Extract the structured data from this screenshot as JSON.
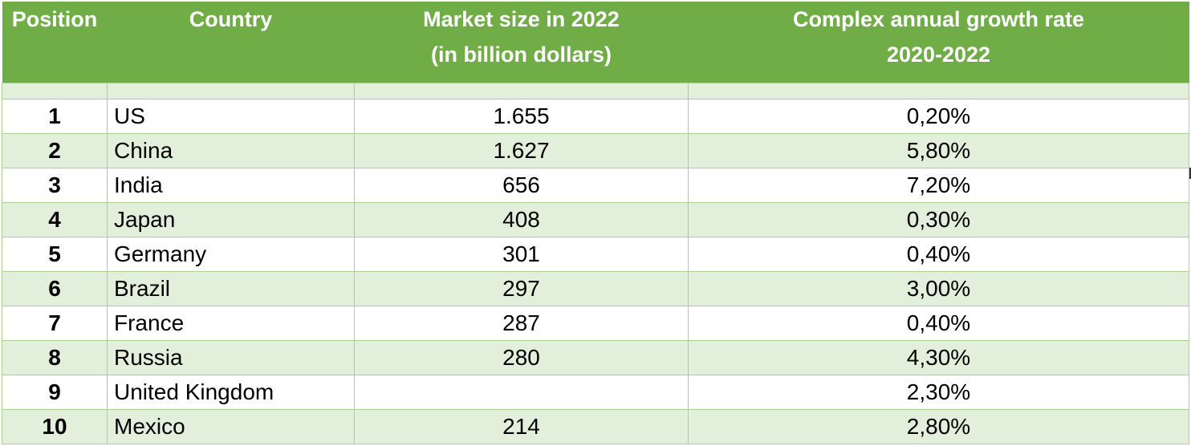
{
  "colors": {
    "header_bg": "#70ad47",
    "header_text": "#ffffff",
    "band_bg": "#e2efda",
    "grid": "#a9d08e"
  },
  "headers": {
    "position": "Position",
    "country": "Country",
    "market_line1": "Market size in 2022",
    "market_line2": "(in billion dollars)",
    "growth_line1": "Complex annual growth rate",
    "growth_line2": "2020-2022"
  },
  "rows": [
    {
      "position": "1",
      "country": "US",
      "market": "1.655",
      "growth": "0,20%"
    },
    {
      "position": "2",
      "country": "China",
      "market": "1.627",
      "growth": "5,80%"
    },
    {
      "position": "3",
      "country": "India",
      "market": "656",
      "growth": "7,20%"
    },
    {
      "position": "4",
      "country": "Japan",
      "market": "408",
      "growth": "0,30%"
    },
    {
      "position": "5",
      "country": "Germany",
      "market": "301",
      "growth": "0,40%"
    },
    {
      "position": "6",
      "country": "Brazil",
      "market": "297",
      "growth": "3,00%"
    },
    {
      "position": "7",
      "country": "France",
      "market": "287",
      "growth": "0,40%"
    },
    {
      "position": "8",
      "country": "Russia",
      "market": "280",
      "growth": "4,30%"
    },
    {
      "position": "9",
      "country": "United Kingdom",
      "market": "",
      "growth": "2,30%"
    },
    {
      "position": "10",
      "country": "Mexico",
      "market": "214",
      "growth": "2,80%"
    }
  ]
}
